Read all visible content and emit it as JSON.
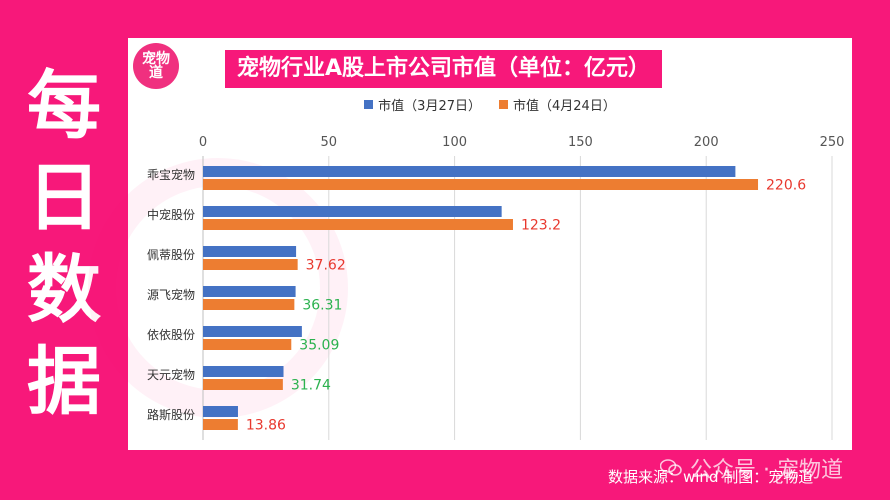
{
  "side_label": [
    "每",
    "日",
    "数",
    "据"
  ],
  "logo_text": "宠物道",
  "title": "宠物行业A股上市公司市值（单位：亿元）",
  "colors": {
    "background": "#f7187a",
    "series1": "#4472c4",
    "series2": "#ed7d31",
    "label_red": "#e8382e",
    "label_green": "#2cb24f",
    "grid": "#d9d9d9"
  },
  "footer": "数据来源：wind   制图：宠物道",
  "watermark": {
    "icon": "wechat-icon",
    "text": "公众号 · 宠物道"
  },
  "chart_data": {
    "type": "bar",
    "orientation": "horizontal",
    "categories": [
      "乖宝宠物",
      "中宠股份",
      "佩蒂股份",
      "源飞宠物",
      "依依股份",
      "天元宠物",
      "路斯股份"
    ],
    "series": [
      {
        "name": "市值（3月27日）",
        "values": [
          211.6,
          118.7,
          37.0,
          36.8,
          39.3,
          32.0,
          13.9
        ]
      },
      {
        "name": "市值（4月24日）",
        "values": [
          220.6,
          123.2,
          37.62,
          36.31,
          35.09,
          31.74,
          13.86
        ]
      }
    ],
    "data_labels": [
      "220.6",
      "123.2",
      "37.62",
      "36.31",
      "35.09",
      "31.74",
      "13.86"
    ],
    "data_label_colors": [
      "red",
      "red",
      "red",
      "green",
      "green",
      "green",
      "red"
    ],
    "xlim": [
      0,
      250
    ],
    "ticks": [
      "0",
      "50",
      "100",
      "150",
      "200",
      "250"
    ],
    "tick_values": [
      0,
      50,
      100,
      150,
      200,
      250
    ],
    "grid": true,
    "legend_position": "top"
  }
}
